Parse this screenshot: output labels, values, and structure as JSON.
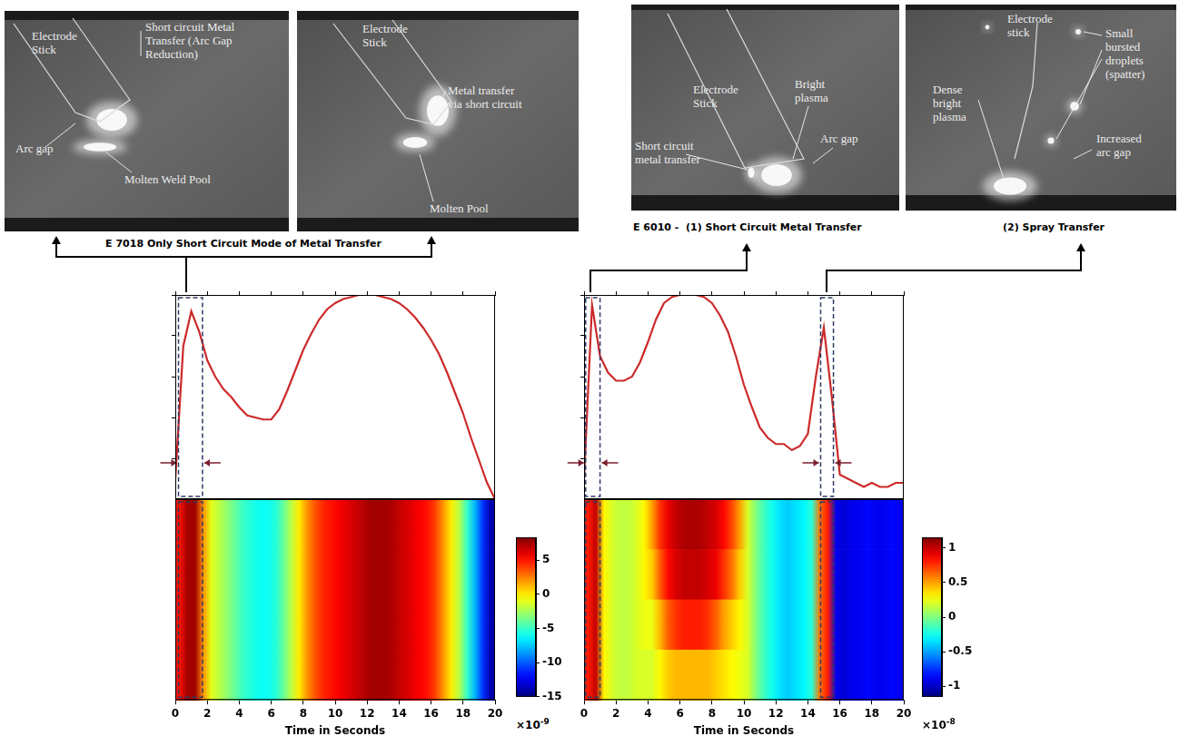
{
  "chart_data": [
    {
      "type": "line",
      "color": "#cc2a2a",
      "grid": false,
      "tick_labels": false,
      "x": [
        0,
        0.5,
        1,
        1.5,
        2,
        2.5,
        3,
        3.5,
        4,
        4.5,
        5,
        5.5,
        6,
        6.5,
        7,
        7.5,
        8,
        8.5,
        9,
        9.5,
        10,
        10.5,
        11,
        11.5,
        12,
        12.5,
        13,
        13.5,
        14,
        14.5,
        15,
        15.5,
        16,
        16.5,
        17,
        17.5,
        18,
        18.5,
        19,
        19.5,
        20
      ],
      "values": [
        0.1,
        0.75,
        0.92,
        0.82,
        0.68,
        0.6,
        0.54,
        0.5,
        0.45,
        0.41,
        0.4,
        0.39,
        0.39,
        0.44,
        0.53,
        0.63,
        0.73,
        0.81,
        0.88,
        0.93,
        0.96,
        0.98,
        0.99,
        1.0,
        1.0,
        1.0,
        0.99,
        0.98,
        0.96,
        0.93,
        0.89,
        0.84,
        0.78,
        0.71,
        0.62,
        0.52,
        0.42,
        0.3,
        0.19,
        0.08,
        0.0
      ],
      "xlim": [
        0,
        20
      ],
      "xticks": [
        0,
        2,
        4,
        6,
        8,
        10,
        12,
        14,
        16,
        18,
        20
      ],
      "ylim": [
        0,
        1
      ],
      "yticks": [
        0,
        0.2,
        0.4,
        0.6,
        0.8,
        1
      ],
      "highlight_regions": [
        [
          0.2,
          1.7
        ]
      ]
    },
    {
      "type": "heatmap",
      "grid": false,
      "tick_labels": "x",
      "x_label": "Time in Seconds",
      "xlim": [
        0,
        20
      ],
      "xticks": [
        0,
        2,
        4,
        6,
        8,
        10,
        12,
        14,
        16,
        18,
        20
      ],
      "cells": [
        [
          5,
          7.5,
          7.5,
          2,
          -1,
          -2,
          -3,
          -4,
          -5,
          -5.5,
          -6,
          -6,
          -5.5,
          -4,
          -2,
          0,
          2,
          3.5,
          4.5,
          5,
          5.5,
          6,
          6.5,
          7,
          7.5,
          7.5,
          7.5,
          7,
          6.5,
          6,
          5.5,
          5,
          4,
          2,
          0,
          -2,
          -5,
          -8,
          -11,
          -14
        ]
      ],
      "colorbar": {
        "range": [
          -15,
          8.3
        ],
        "ticks": [
          -15,
          -10,
          -5,
          0,
          5
        ],
        "multiplier": "×10",
        "exponent": "-9"
      },
      "highlight_regions": [
        [
          0.2,
          1.7
        ]
      ]
    },
    {
      "type": "line",
      "color": "#cc2a2a",
      "grid": false,
      "tick_labels": false,
      "x": [
        0,
        0.5,
        1,
        1.5,
        2,
        2.5,
        3,
        3.5,
        4,
        4.5,
        5,
        5.5,
        6,
        6.5,
        7,
        7.5,
        8,
        8.5,
        9,
        9.5,
        10,
        10.5,
        11,
        11.5,
        12,
        12.5,
        13,
        13.5,
        14,
        14.5,
        15,
        15.5,
        16,
        16.5,
        17,
        17.5,
        18,
        18.5,
        19,
        19.5,
        20
      ],
      "values": [
        0.1,
        0.95,
        0.7,
        0.62,
        0.58,
        0.58,
        0.6,
        0.67,
        0.77,
        0.88,
        0.96,
        0.99,
        1.0,
        1.0,
        1.0,
        0.99,
        0.96,
        0.9,
        0.82,
        0.7,
        0.56,
        0.45,
        0.35,
        0.3,
        0.27,
        0.27,
        0.24,
        0.26,
        0.32,
        0.6,
        0.84,
        0.5,
        0.12,
        0.1,
        0.08,
        0.06,
        0.08,
        0.06,
        0.06,
        0.08,
        0.08
      ],
      "xlim": [
        0,
        20
      ],
      "xticks": [
        0,
        2,
        4,
        6,
        8,
        10,
        12,
        14,
        16,
        18,
        20
      ],
      "ylim": [
        0,
        1
      ],
      "yticks": [
        0,
        0.2,
        0.4,
        0.6,
        0.8,
        1
      ],
      "highlight_regions": [
        [
          0.1,
          1.0
        ],
        [
          14.8,
          15.6
        ]
      ]
    },
    {
      "type": "heatmap",
      "grid": false,
      "tick_labels": "x",
      "x_label": "Time in Seconds",
      "xlim": [
        0,
        20
      ],
      "xticks": [
        0,
        2,
        4,
        6,
        8,
        10,
        12,
        14,
        16,
        18,
        20
      ],
      "cells": [
        [
          0.8,
          1.0,
          0.3,
          0.2,
          0.15,
          0.15,
          0.2,
          0.3,
          0.5,
          0.75,
          0.9,
          1.0,
          1.05,
          1.05,
          1.05,
          1.0,
          0.95,
          0.85,
          0.7,
          0.5,
          0.2,
          0.0,
          -0.15,
          -0.25,
          -0.35,
          -0.4,
          -0.35,
          -0.3,
          -0.2,
          0.6,
          0.8,
          -0.9,
          -0.95,
          -0.9,
          -0.9,
          -0.85,
          -0.9,
          -0.9,
          -0.85,
          -0.9
        ],
        [
          0.8,
          1.0,
          0.3,
          0.2,
          0.15,
          0.15,
          0.2,
          0.3,
          0.4,
          0.65,
          0.85,
          0.95,
          1.0,
          1.0,
          1.0,
          0.95,
          0.9,
          0.75,
          0.6,
          0.4,
          0.2,
          0.0,
          -0.15,
          -0.25,
          -0.35,
          -0.4,
          -0.35,
          -0.3,
          -0.2,
          0.6,
          0.8,
          -0.9,
          -0.95,
          -0.9,
          -0.9,
          -0.85,
          -0.9,
          -0.9,
          -0.85,
          -0.9
        ],
        [
          0.8,
          1.0,
          0.3,
          0.2,
          0.15,
          0.15,
          0.2,
          0.25,
          0.25,
          0.45,
          0.65,
          0.75,
          0.8,
          0.8,
          0.8,
          0.75,
          0.65,
          0.5,
          0.4,
          0.3,
          0.2,
          0.0,
          -0.15,
          -0.25,
          -0.35,
          -0.4,
          -0.35,
          -0.3,
          -0.2,
          0.6,
          0.8,
          -0.9,
          -0.95,
          -0.9,
          -0.9,
          -0.85,
          -0.9,
          -0.9,
          -0.85,
          -0.9
        ],
        [
          0.8,
          1.0,
          0.3,
          0.2,
          0.15,
          0.15,
          0.2,
          0.2,
          0.2,
          0.3,
          0.4,
          0.45,
          0.45,
          0.45,
          0.45,
          0.45,
          0.4,
          0.35,
          0.3,
          0.25,
          0.2,
          0.0,
          -0.15,
          -0.25,
          -0.35,
          -0.4,
          -0.35,
          -0.3,
          -0.2,
          0.6,
          0.8,
          -0.9,
          -0.95,
          -0.9,
          -0.9,
          -0.85,
          -0.9,
          -0.9,
          -0.85,
          -0.9
        ]
      ],
      "colorbar": {
        "range": [
          -1.15,
          1.15
        ],
        "ticks": [
          -1,
          -0.5,
          0,
          0.5,
          1
        ],
        "multiplier": "×10",
        "exponent": "-8"
      },
      "highlight_regions": [
        [
          0.1,
          1.0
        ],
        [
          14.8,
          15.6
        ]
      ]
    }
  ],
  "photos": [
    {
      "labels": [
        [
          "Electrode",
          "Stick"
        ],
        [
          "Short circuit Metal",
          "Transfer (Arc Gap",
          "Reduction)"
        ],
        [
          "Arc gap"
        ],
        [
          "Molten Weld Pool"
        ]
      ]
    },
    {
      "labels": [
        [
          "Electrode",
          "Stick"
        ],
        [
          "Metal transfer",
          "via short circuit"
        ],
        [
          "Molten Pool"
        ]
      ]
    },
    {
      "labels": [
        [
          "Electrode",
          "Stick"
        ],
        [
          "Bright",
          "plasma"
        ],
        [
          "Short circuit",
          "metal transfer"
        ],
        [
          "Arc gap"
        ]
      ]
    },
    {
      "labels": [
        [
          "Electrode",
          "stick"
        ],
        [
          "Small",
          "bursted",
          "droplets",
          "(spatter)"
        ],
        [
          "Dense",
          "bright",
          "plasma"
        ],
        [
          "Increased",
          "arc gap"
        ]
      ]
    }
  ],
  "captions": [
    "E 7018 Only Short Circuit Mode of Metal Transfer",
    "E 6010 -  (1) Short Circuit Metal Transfer",
    "(2) Spray Transfer"
  ]
}
